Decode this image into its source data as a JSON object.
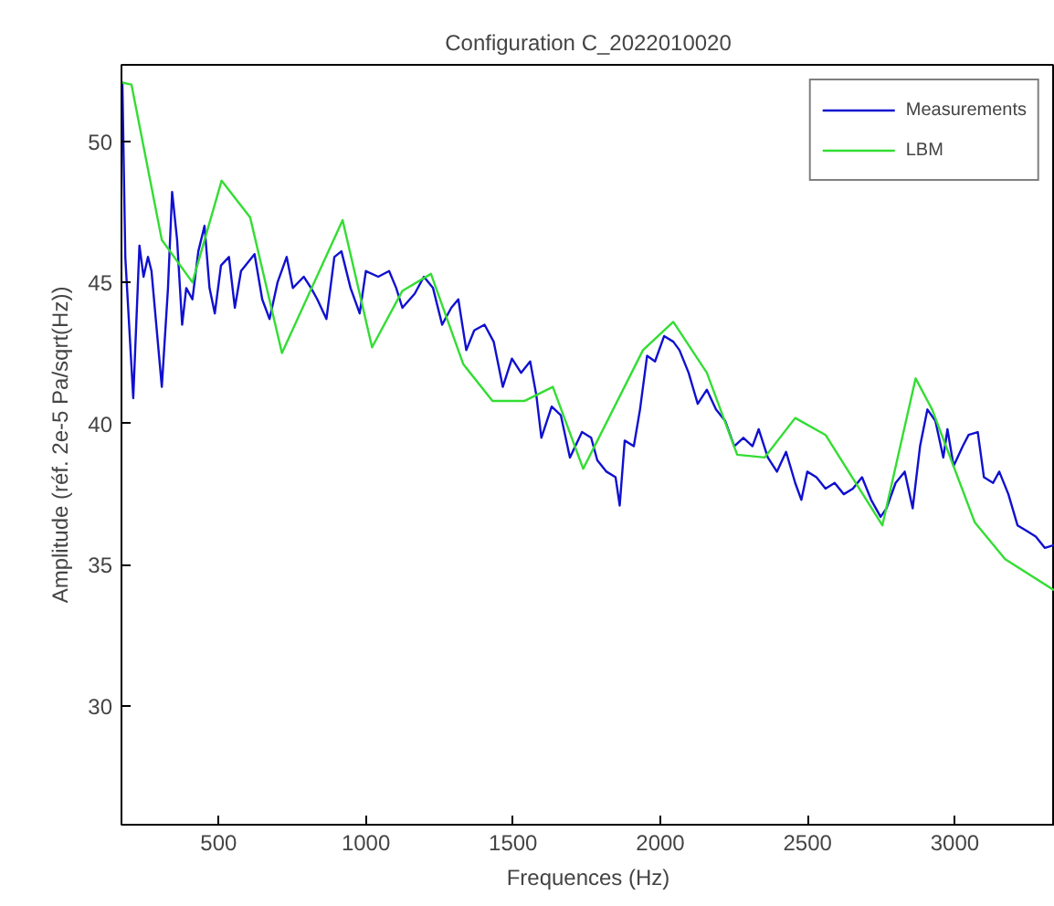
{
  "chart_data": {
    "type": "line",
    "title": "Configuration C_2022010020",
    "xlabel": "Frequences (Hz)",
    "ylabel": "Amplitude (réf. 2e-5 Pa/sqrt(Hz))",
    "xlim": [
      170,
      3340
    ],
    "ylim": [
      25.8,
      52.7
    ],
    "xticks": [
      500,
      1000,
      1500,
      2000,
      2500,
      3000
    ],
    "yticks": [
      30,
      35,
      40,
      45,
      50
    ],
    "grid": false,
    "legend": "top right",
    "marker": "none",
    "line_style": "solid",
    "series": [
      {
        "name": "Measurements",
        "color": "#1010d0",
        "x": [
          173,
          183,
          210,
          231,
          245,
          260,
          272,
          307,
          328,
          342,
          359,
          376,
          390,
          411,
          431,
          452,
          469,
          487,
          508,
          535,
          555,
          576,
          622,
          648,
          673,
          700,
          731,
          752,
          789,
          814,
          835,
          866,
          893,
          917,
          948,
          979,
          1000,
          1042,
          1079,
          1103,
          1124,
          1166,
          1197,
          1228,
          1259,
          1290,
          1314,
          1341,
          1368,
          1403,
          1434,
          1465,
          1496,
          1527,
          1558,
          1579,
          1596,
          1631,
          1662,
          1693,
          1734,
          1765,
          1786,
          1817,
          1848,
          1862,
          1879,
          1910,
          1931,
          1955,
          1982,
          2013,
          2044,
          2065,
          2096,
          2127,
          2158,
          2189,
          2220,
          2251,
          2282,
          2313,
          2334,
          2365,
          2396,
          2427,
          2458,
          2479,
          2499,
          2530,
          2561,
          2592,
          2623,
          2654,
          2685,
          2716,
          2748,
          2768,
          2799,
          2830,
          2857,
          2882,
          2907,
          2934,
          2961,
          2975,
          2996,
          3027,
          3047,
          3078,
          3099,
          3130,
          3151,
          3182,
          3213,
          3244,
          3275,
          3306,
          3337
        ],
        "values": [
          52.1,
          45.9,
          40.9,
          46.3,
          45.2,
          45.9,
          45.4,
          41.3,
          44.8,
          48.2,
          46.5,
          43.5,
          44.8,
          44.4,
          46.1,
          47.0,
          44.8,
          43.9,
          45.6,
          45.9,
          44.1,
          45.4,
          46.0,
          44.4,
          43.7,
          45.0,
          45.9,
          44.8,
          45.2,
          44.8,
          44.4,
          43.7,
          45.9,
          46.1,
          44.8,
          43.9,
          45.4,
          45.2,
          45.4,
          44.8,
          44.1,
          44.6,
          45.2,
          44.8,
          43.5,
          44.1,
          44.4,
          42.6,
          43.3,
          43.5,
          42.9,
          41.3,
          42.3,
          41.8,
          42.2,
          41.0,
          39.5,
          40.6,
          40.3,
          38.8,
          39.7,
          39.5,
          38.7,
          38.3,
          38.1,
          37.1,
          39.4,
          39.2,
          40.5,
          42.4,
          42.2,
          43.1,
          42.9,
          42.6,
          41.8,
          40.7,
          41.2,
          40.5,
          40.1,
          39.2,
          39.5,
          39.2,
          39.8,
          38.8,
          38.3,
          39.0,
          37.9,
          37.3,
          38.3,
          38.1,
          37.7,
          37.9,
          37.5,
          37.7,
          38.1,
          37.3,
          36.7,
          37.0,
          37.9,
          38.3,
          37.0,
          39.2,
          40.5,
          40.1,
          38.8,
          39.8,
          38.5,
          39.2,
          39.6,
          39.7,
          38.1,
          37.9,
          38.3,
          37.5,
          36.4,
          36.2,
          36.0,
          35.6,
          35.7
        ]
      },
      {
        "name": "LBM",
        "color": "#33dd33",
        "x": [
          173,
          204,
          307,
          411,
          510,
          607,
          715,
          921,
          1021,
          1124,
          1221,
          1331,
          1430,
          1538,
          1635,
          1738,
          1941,
          2044,
          2158,
          2261,
          2354,
          2458,
          2561,
          2754,
          2867,
          2923,
          3068,
          3171,
          3337
        ],
        "values": [
          52.07,
          52.0,
          46.5,
          45.0,
          48.6,
          47.3,
          42.5,
          47.2,
          42.7,
          44.7,
          45.3,
          42.1,
          40.8,
          40.8,
          41.3,
          38.4,
          42.6,
          43.6,
          41.8,
          38.9,
          38.8,
          40.2,
          39.6,
          36.4,
          41.6,
          40.5,
          36.5,
          35.2,
          34.1
        ]
      }
    ]
  }
}
